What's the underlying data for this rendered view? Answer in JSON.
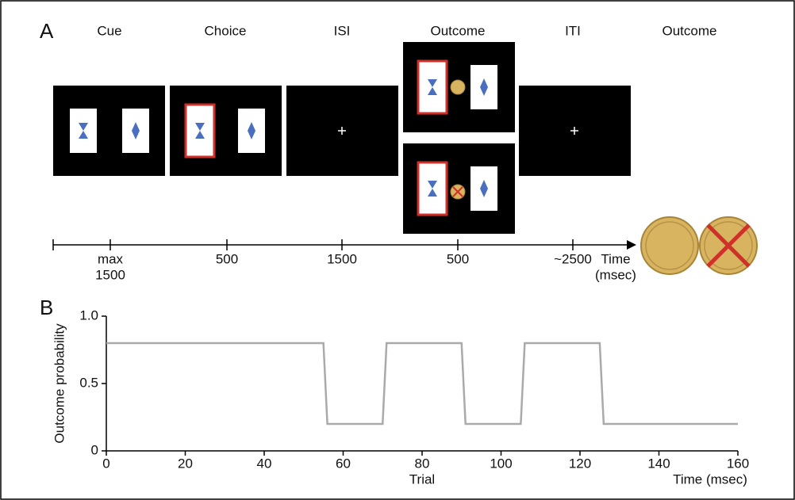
{
  "panel_a": {
    "label": "A",
    "phases": [
      "Cue",
      "Choice",
      "ISI",
      "Outcome",
      "ITI",
      "Outcome"
    ],
    "timeline": {
      "labels": [
        [
          "max",
          "1500"
        ],
        [
          "500"
        ],
        [
          "1500"
        ],
        [
          "500"
        ],
        [
          "~2500"
        ]
      ],
      "axis_label": [
        "Time",
        "(msec)"
      ]
    }
  },
  "chart_data": {
    "type": "line",
    "panel_label": "B",
    "x_label": "Trial",
    "y_label": "Outcome probability",
    "annotation": "Time (msec)",
    "x": [
      0,
      55,
      56,
      70,
      71,
      90,
      91,
      105,
      106,
      125,
      126,
      160
    ],
    "values": [
      0.8,
      0.8,
      0.2,
      0.2,
      0.8,
      0.8,
      0.2,
      0.2,
      0.8,
      0.8,
      0.2,
      0.2
    ],
    "color": "#aaaaaa",
    "xlim": [
      0,
      160
    ],
    "xticks": [
      0,
      20,
      40,
      60,
      80,
      100,
      120,
      140,
      160
    ],
    "ylim": [
      0,
      1
    ],
    "yticks": [
      0,
      0.5,
      {
        "value": 1,
        "label": "1.0"
      }
    ]
  }
}
